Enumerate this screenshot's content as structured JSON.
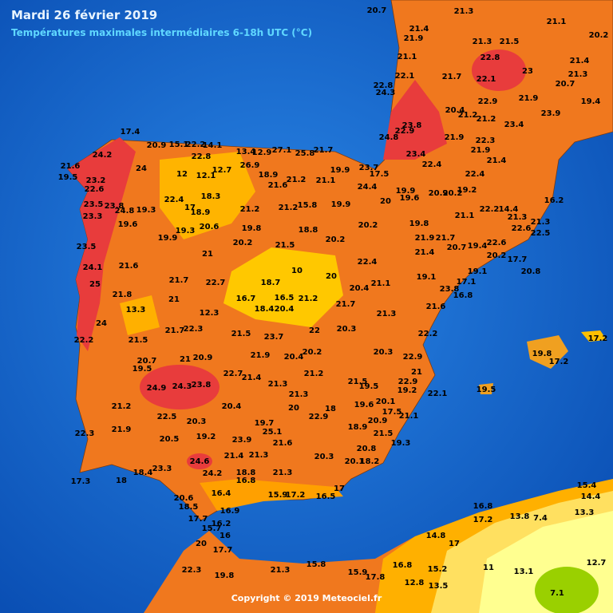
{
  "header": {
    "title": "Mardi 26 février 2019",
    "subtitle": "Températures maximales intermédiaires 6-18h UTC (°C)"
  },
  "copyright": "Copyright © 2019 Meteociel.fr",
  "stations": [
    17.4,
    20.9,
    15.1,
    22.2,
    14.1,
    24.2,
    22.8,
    21.6,
    24,
    13.4,
    12.9,
    27.1,
    25.8,
    21.7,
    19.5,
    23.2,
    22.6,
    12,
    12.1,
    12.7,
    26.9,
    18.9,
    21.6,
    21.2,
    21.1,
    19.9,
    23.7,
    17.5,
    24.4,
    18.3,
    22.4,
    23.5,
    23.8,
    24.8,
    19.3,
    17,
    18.9,
    21.2,
    21.2,
    15.8,
    19.9,
    23.3,
    19.6,
    20.6,
    19.8,
    18.8,
    20.2,
    19.3,
    19.9,
    20.2,
    21.5,
    20.2,
    23.5,
    21,
    24.1,
    21.6,
    10,
    18.7,
    22.4,
    21.7,
    22.7,
    20,
    25,
    21.8,
    21,
    16.7,
    16.5,
    21.2,
    20.4,
    21.1,
    21.7,
    13.3,
    12.3,
    18.4,
    20.4,
    24,
    21.5,
    21.7,
    22.3,
    21.5,
    23.7,
    22,
    20.3,
    22.2,
    20.7,
    21,
    20.9,
    21.9,
    20.4,
    20.2,
    20.3,
    19.5,
    22.7,
    21.4,
    21.2,
    24.9,
    24.3,
    23.8,
    21.3,
    19.5,
    21.3,
    22.1,
    21.2,
    20.4,
    20,
    18,
    22.9,
    20.1,
    22.5,
    20.3,
    19.7,
    25.1,
    22.3,
    21.9,
    20.5,
    19.2,
    23.9,
    21.6,
    19.3,
    21.4,
    21.3,
    20.3,
    20.1,
    24.6,
    23.3,
    18.4,
    24.2,
    18.8,
    21.3,
    17.3,
    18,
    16.8,
    17,
    16.4,
    15.9,
    17.2,
    16.5,
    20.6,
    18.5,
    16.9,
    17.7,
    16.2,
    15.7,
    16,
    20,
    17.7,
    22.3,
    19.8,
    21.3,
    15.8,
    15.9,
    17.8,
    16.8,
    12.8,
    13.5,
    15.2,
    11,
    13.1,
    7.1,
    12.7,
    17,
    14.8,
    16.8,
    17.2,
    13.8,
    7.4,
    15.4,
    14.4,
    13.3,
    19.5,
    17.2,
    19.8,
    17.2,
    20.7,
    21.3,
    21.4,
    21.9,
    21.3,
    21.5,
    21.1,
    20.2,
    21.1,
    22.8,
    21.4,
    22.1,
    21.7,
    22.1,
    23,
    21.3,
    22.8,
    24.3,
    20.7,
    22.9,
    21.9,
    19.4,
    20.4,
    21.2,
    21.2,
    23.9,
    23.8,
    23.4,
    21.9,
    24.8,
    22.9,
    23.4,
    22.3,
    21.9,
    22.4,
    21.4,
    22.4,
    19.9,
    19.6,
    20.9,
    20.2,
    19.2,
    20,
    22.2,
    14.4,
    21.3,
    21.3,
    16.2,
    22.6,
    22.5,
    21.1,
    19.8,
    21.9,
    21.7,
    21.4,
    20.7,
    19.4,
    22.6,
    20.2,
    17.7,
    20.8,
    19.1,
    19.1,
    17.1,
    23.8,
    16.8,
    21.6,
    21.3,
    22.2,
    22.9,
    21,
    21.5,
    22.9,
    19.2,
    19.6,
    17.5,
    21.1,
    20.9,
    18.9,
    21.5,
    20.8,
    18.2
  ]
}
